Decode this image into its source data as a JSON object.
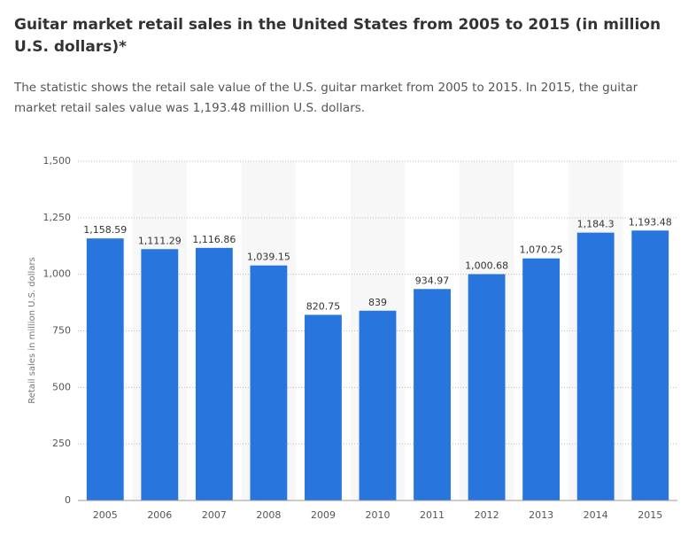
{
  "chart_data": {
    "type": "bar",
    "title": "Guitar market retail sales in the United States from 2005 to 2015 (in million U.S. dollars)*",
    "subtitle": "The statistic shows the retail sale value of the U.S. guitar market from 2005 to 2015. In 2015, the guitar market retail sales value was 1,193.48 million U.S. dollars.",
    "y_label": "Retail sales in million U.S. dollars",
    "categories": [
      "2005",
      "2006",
      "2007",
      "2008",
      "2009",
      "2010",
      "2011",
      "2012",
      "2013",
      "2014",
      "2015"
    ],
    "values": [
      1158.59,
      1111.29,
      1116.86,
      1039.15,
      820.75,
      839,
      934.97,
      1000.68,
      1070.25,
      1184.3,
      1193.48
    ],
    "value_labels": [
      "1,158.59",
      "1,111.29",
      "1,116.86",
      "1,039.15",
      "820.75",
      "839",
      "934.97",
      "1,000.68",
      "1,070.25",
      "1,184.3",
      "1,193.48"
    ],
    "color": "#2876dd",
    "ylim": [
      0,
      1500
    ],
    "yticks": [
      0,
      250,
      500,
      750,
      {
        "value": 1000,
        "label": "1,000"
      },
      {
        "value": 1250,
        "label": "1,250"
      },
      {
        "value": 1500,
        "label": "1,500"
      }
    ],
    "grid": true
  }
}
